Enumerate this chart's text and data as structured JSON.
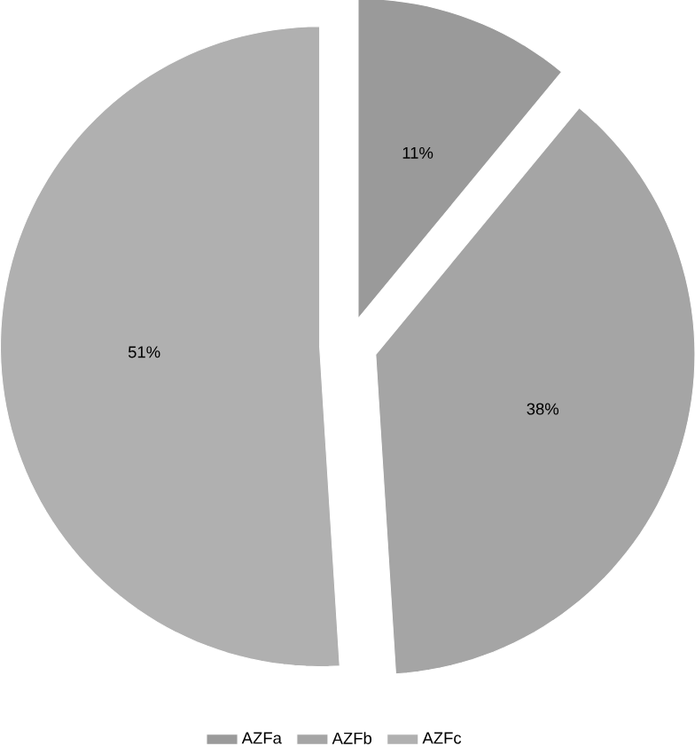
{
  "chart_data": {
    "type": "pie",
    "categories": [
      "AZFa",
      "AZFb",
      "AZFc"
    ],
    "values": [
      11,
      38,
      51
    ],
    "colors": [
      "#9a9a9a",
      "#a5a5a5",
      "#b0b0b0"
    ],
    "value_labels": [
      "11%",
      "38%",
      "51%"
    ],
    "legend": "bottom"
  }
}
